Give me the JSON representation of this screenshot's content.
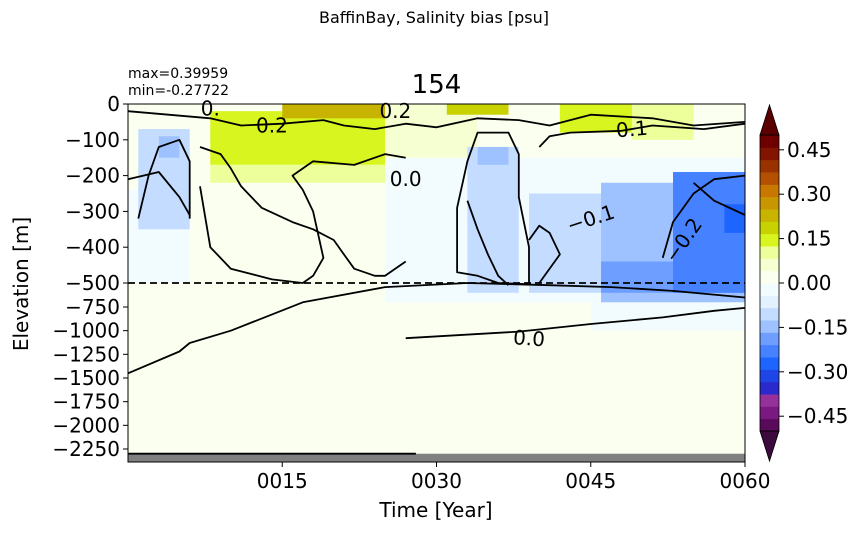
{
  "figure": {
    "suptitle": "BaffinBay, Salinity bias [psu]",
    "panel_title": "154",
    "stats": {
      "max": "max=0.39959",
      "min": "min=-0.27722"
    }
  },
  "chart_data": {
    "type": "heatmap",
    "xlabel": "Time [Year]",
    "ylabel": "Elevation [m]",
    "xlim": [
      0,
      60
    ],
    "x_ticks": [
      {
        "value": 15,
        "label": "0015"
      },
      {
        "value": 30,
        "label": "0030"
      },
      {
        "value": 45,
        "label": "0045"
      },
      {
        "value": 60,
        "label": "0060"
      }
    ],
    "y_upper_ticks": [
      {
        "value": 0,
        "label": "0"
      },
      {
        "value": -100,
        "label": "−100"
      },
      {
        "value": -200,
        "label": "−200"
      },
      {
        "value": -300,
        "label": "−300"
      },
      {
        "value": -400,
        "label": "−400"
      },
      {
        "value": -500,
        "label": "−500"
      }
    ],
    "y_lower_ticks": [
      {
        "value": -750,
        "label": "−750"
      },
      {
        "value": -1000,
        "label": "−1000"
      },
      {
        "value": -1250,
        "label": "−1250"
      },
      {
        "value": -1500,
        "label": "−1500"
      },
      {
        "value": -1750,
        "label": "−1750"
      },
      {
        "value": -2000,
        "label": "−2000"
      },
      {
        "value": -2250,
        "label": "−2250"
      }
    ],
    "y_break_depth": -500,
    "bottom_depth": -2400,
    "colorbar": {
      "vmin": -0.5,
      "vmax": 0.5,
      "ticks": [
        {
          "value": 0.45,
          "label": "0.45"
        },
        {
          "value": 0.3,
          "label": "0.30"
        },
        {
          "value": 0.15,
          "label": "0.15"
        },
        {
          "value": 0.0,
          "label": "0.00"
        },
        {
          "value": -0.15,
          "label": "−0.15"
        },
        {
          "value": -0.3,
          "label": "−0.30"
        },
        {
          "value": -0.45,
          "label": "−0.45"
        }
      ],
      "colors": [
        "#5a0a5a",
        "#7a1a80",
        "#96309a",
        "#2a2acc",
        "#1e46e6",
        "#1e64ff",
        "#4682ff",
        "#6e9eff",
        "#9ec2ff",
        "#c4dcff",
        "#e2f2ff",
        "#f2fcff",
        "#fbfff0",
        "#f5ffd2",
        "#ecff9a",
        "#d8f520",
        "#c8d200",
        "#c8b400",
        "#c89600",
        "#c87800",
        "#b45000",
        "#9a3200",
        "#821400",
        "#6e0000"
      ],
      "under_color": "#3c0a3c",
      "over_color": "#5a0000"
    },
    "regions": [
      {
        "x": [
          0,
          60
        ],
        "y": [
          0,
          -2300
        ],
        "value": 0.005
      },
      {
        "x": [
          0,
          60
        ],
        "y": [
          -300,
          -2300
        ],
        "value": 0.01
      },
      {
        "x": [
          17,
          60
        ],
        "y": [
          -400,
          -2300
        ],
        "value": 0.01
      },
      {
        "x": [
          25,
          60
        ],
        "y": [
          -150,
          -700
        ],
        "value": -0.02
      },
      {
        "x": [
          0,
          6
        ],
        "y": [
          -240,
          -500
        ],
        "value": -0.02
      },
      {
        "x": [
          14,
          21
        ],
        "y": [
          -760,
          -1080
        ],
        "value": 0.025
      },
      {
        "x": [
          22,
          24
        ],
        "y": [
          -780,
          -1000
        ],
        "value": 0.025
      },
      {
        "x": [
          6,
          24
        ],
        "y": [
          -200,
          -260
        ],
        "value": 0.01
      },
      {
        "x": [
          29,
          45
        ],
        "y": [
          -500,
          -700
        ],
        "value": -0.01
      },
      {
        "x": [
          45,
          60
        ],
        "y": [
          -500,
          -1000
        ],
        "value": -0.04
      },
      {
        "x": [
          8,
          25
        ],
        "y": [
          -20,
          -170
        ],
        "value": 0.15
      },
      {
        "x": [
          8,
          25
        ],
        "y": [
          -170,
          -220
        ],
        "value": 0.1
      },
      {
        "x": [
          25,
          34
        ],
        "y": [
          0,
          -150
        ],
        "value": 0.05
      },
      {
        "x": [
          42,
          51
        ],
        "y": [
          0,
          -80
        ],
        "value": 0.13
      },
      {
        "x": [
          49,
          55
        ],
        "y": [
          0,
          -100
        ],
        "value": 0.1
      },
      {
        "x": [
          15,
          25
        ],
        "y": [
          0,
          -40
        ],
        "value": 0.22
      },
      {
        "x": [
          31,
          37
        ],
        "y": [
          0,
          -30
        ],
        "value": 0.2
      },
      {
        "x": [
          1,
          6
        ],
        "y": [
          -70,
          -350
        ],
        "value": -0.09
      },
      {
        "x": [
          3,
          5
        ],
        "y": [
          -90,
          -150
        ],
        "value": -0.16
      },
      {
        "x": [
          33,
          38
        ],
        "y": [
          -120,
          -600
        ],
        "value": -0.09
      },
      {
        "x": [
          34,
          37
        ],
        "y": [
          -120,
          -170
        ],
        "value": -0.14
      },
      {
        "x": [
          39,
          53
        ],
        "y": [
          -250,
          -600
        ],
        "value": -0.1
      },
      {
        "x": [
          46,
          60
        ],
        "y": [
          -220,
          -700
        ],
        "value": -0.13
      },
      {
        "x": [
          46,
          60
        ],
        "y": [
          -440,
          -600
        ],
        "value": -0.2
      },
      {
        "x": [
          53,
          60
        ],
        "y": [
          -190,
          -600
        ],
        "value": -0.22
      },
      {
        "x": [
          58,
          60
        ],
        "y": [
          -280,
          -360
        ],
        "value": -0.28
      }
    ],
    "contours": [
      {
        "level": "0.0",
        "points": [
          [
            0,
            -1450
          ],
          [
            5,
            -1220
          ],
          [
            6,
            -1130
          ],
          [
            10,
            -1000
          ],
          [
            17,
            -700
          ],
          [
            25,
            -540
          ],
          [
            33,
            -500
          ],
          [
            41,
            -520
          ],
          [
            47,
            -540
          ],
          [
            53,
            -580
          ],
          [
            60,
            -650
          ]
        ]
      },
      {
        "level": "0.0",
        "points": [
          [
            27,
            -1080
          ],
          [
            38,
            -1010
          ],
          [
            45,
            -930
          ],
          [
            52,
            -860
          ],
          [
            57,
            -790
          ],
          [
            60,
            -760
          ]
        ]
      },
      {
        "level": "0.0",
        "points": [
          [
            0,
            -2300
          ],
          [
            28,
            -2300
          ]
        ]
      },
      {
        "level": "0.0",
        "points": [
          [
            7,
            -120
          ],
          [
            9,
            -140
          ],
          [
            10,
            -180
          ],
          [
            11,
            -230
          ],
          [
            13,
            -290
          ],
          [
            16,
            -330
          ],
          [
            18,
            -350
          ],
          [
            20,
            -380
          ],
          [
            21,
            -420
          ],
          [
            22,
            -460
          ],
          [
            24,
            -480
          ],
          [
            25,
            -480
          ],
          [
            27,
            -440
          ]
        ]
      },
      {
        "level": "0.0",
        "points": [
          [
            7,
            -230
          ],
          [
            8,
            -400
          ],
          [
            10,
            -460
          ],
          [
            14,
            -490
          ],
          [
            17,
            -500
          ],
          [
            18,
            -480
          ],
          [
            19,
            -430
          ],
          [
            18,
            -300
          ],
          [
            17,
            -240
          ],
          [
            16,
            -200
          ],
          [
            18,
            -160
          ],
          [
            22,
            -170
          ],
          [
            25,
            -140
          ],
          [
            27,
            -150
          ]
        ]
      },
      {
        "level": "0.0",
        "points": [
          [
            33,
            -270
          ],
          [
            34,
            -350
          ],
          [
            35,
            -420
          ],
          [
            36,
            -480
          ],
          [
            37,
            -520
          ]
        ]
      },
      {
        "level": "0.0",
        "points": [
          [
            40,
            -120
          ],
          [
            41,
            -90
          ],
          [
            43,
            -80
          ],
          [
            48,
            -75
          ],
          [
            51,
            -60
          ],
          [
            56,
            -70
          ],
          [
            60,
            -55
          ]
        ]
      },
      {
        "level": "0.0",
        "points": [
          [
            55,
            -220
          ],
          [
            57,
            -270
          ],
          [
            60,
            -310
          ]
        ]
      },
      {
        "level": "0.1",
        "points": [
          [
            0,
            -20
          ],
          [
            8,
            -40
          ],
          [
            11,
            -60
          ],
          [
            15,
            -55
          ],
          [
            19,
            -45
          ],
          [
            21,
            -60
          ],
          [
            24,
            -70
          ],
          [
            27,
            -55
          ],
          [
            30,
            -65
          ],
          [
            34,
            -40
          ],
          [
            38,
            -45
          ],
          [
            41,
            -60
          ],
          [
            45,
            -30
          ],
          [
            51,
            -40
          ],
          [
            55,
            -60
          ],
          [
            60,
            -50
          ]
        ]
      },
      {
        "level": "0.1",
        "points": [
          [
            0,
            -210
          ],
          [
            3,
            -190
          ],
          [
            5,
            -260
          ],
          [
            6,
            -310
          ]
        ]
      },
      {
        "level": "-0.1",
        "points": [
          [
            1,
            -320
          ],
          [
            2,
            -200
          ],
          [
            3,
            -120
          ],
          [
            5,
            -100
          ],
          [
            6,
            -160
          ],
          [
            6,
            -260
          ],
          [
            6,
            -320
          ]
        ]
      },
      {
        "level": "-0.1",
        "points": [
          [
            32,
            -290
          ],
          [
            33,
            -160
          ],
          [
            34,
            -80
          ],
          [
            37,
            -80
          ],
          [
            38,
            -140
          ],
          [
            38,
            -260
          ],
          [
            39,
            -400
          ],
          [
            39,
            -510
          ],
          [
            36,
            -500
          ],
          [
            34,
            -480
          ],
          [
            32,
            -470
          ],
          [
            32,
            -390
          ],
          [
            32,
            -290
          ]
        ]
      },
      {
        "level": "-0.1",
        "points": [
          [
            39,
            -380
          ],
          [
            40,
            -340
          ],
          [
            41,
            -360
          ],
          [
            42,
            -420
          ],
          [
            40,
            -500
          ]
        ]
      },
      {
        "level": "-0.2",
        "points": [
          [
            52,
            -430
          ],
          [
            53,
            -330
          ],
          [
            55,
            -250
          ],
          [
            57,
            -210
          ],
          [
            60,
            -200
          ]
        ]
      }
    ],
    "contour_labels": [
      {
        "text": "0.2",
        "x": 14,
        "y": -60,
        "angle": 0
      },
      {
        "text": "0.2",
        "x": 26,
        "y": -20,
        "angle": 0
      },
      {
        "text": "0.1",
        "x": 49,
        "y": -70,
        "angle": -5
      },
      {
        "text": "0.0",
        "x": 27,
        "y": -210,
        "angle": 0
      },
      {
        "text": "−0.1",
        "x": 45,
        "y": -320,
        "angle": -18
      },
      {
        "text": "−0.2",
        "x": 54,
        "y": -380,
        "angle": -55
      },
      {
        "text": "0.0",
        "x": 39,
        "y": -1080,
        "angle": 4
      },
      {
        "text": "0.",
        "x": 8,
        "y": -12,
        "angle": 0
      }
    ]
  }
}
